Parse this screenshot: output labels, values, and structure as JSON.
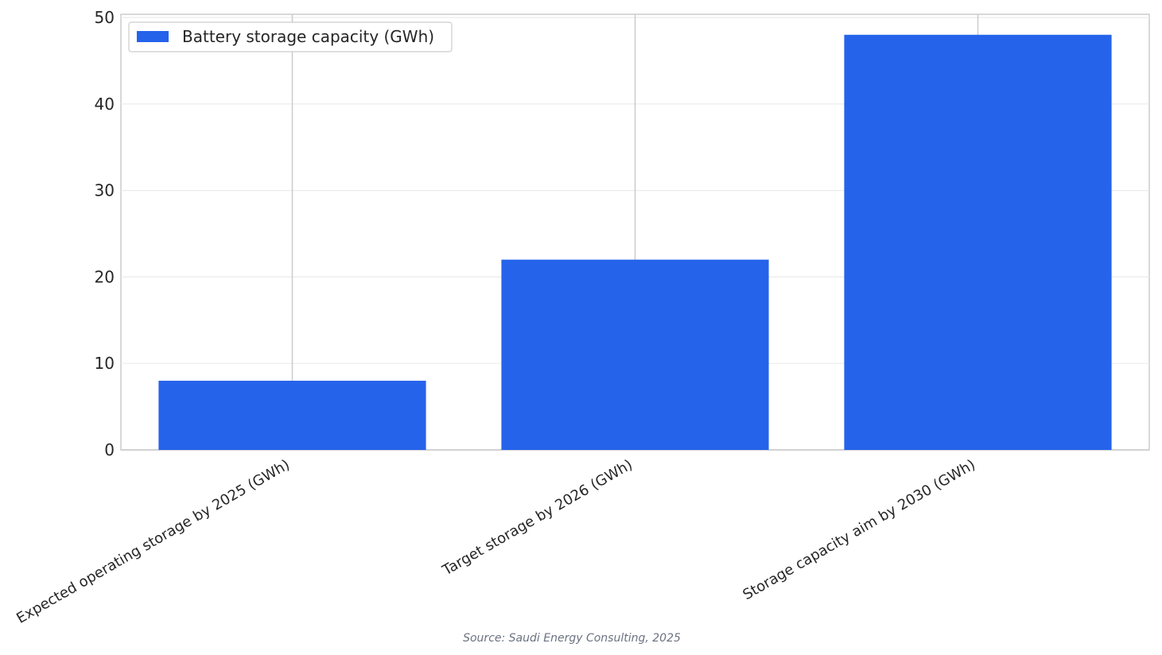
{
  "chart_data": {
    "type": "bar",
    "categories": [
      "Expected operating storage by 2025 (GWh)",
      "Target storage by 2026 (GWh)",
      "Storage capacity aim by 2030 (GWh)"
    ],
    "series": [
      {
        "name": "Battery storage capacity (GWh)",
        "values": [
          8,
          22,
          48
        ],
        "color": "#2563eb"
      }
    ],
    "title": "",
    "xlabel": "",
    "ylabel": "",
    "ylim": [
      0,
      50
    ],
    "yticks": [
      "0",
      "10",
      "20",
      "30",
      "40",
      "50"
    ],
    "grid": true,
    "legend_position": "top-left",
    "source": "Source: Saudi Energy Consulting, 2025"
  }
}
